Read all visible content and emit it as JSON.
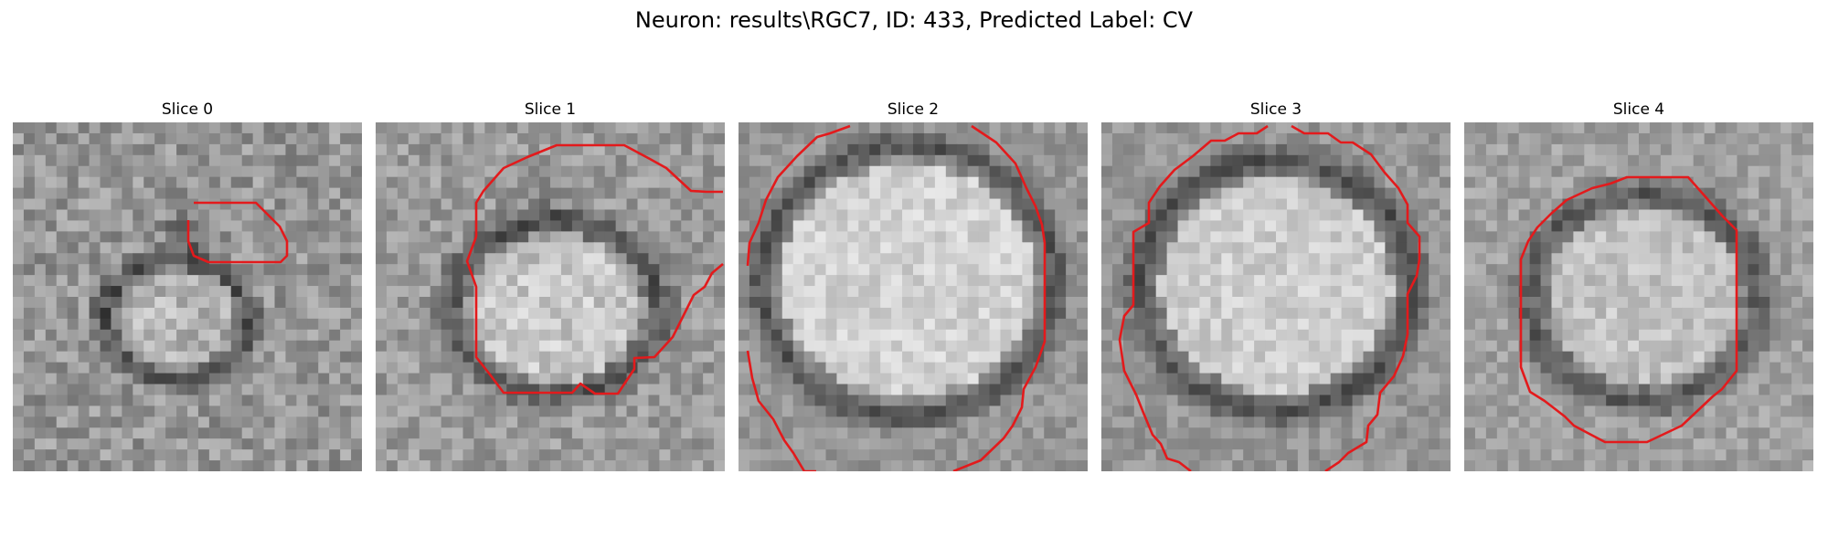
{
  "figure": {
    "title": "Neuron: results\\RGC7, ID: 433, Predicted Label: CV"
  },
  "panels": [
    {
      "title": "Slice 0"
    },
    {
      "title": "Slice 1"
    },
    {
      "title": "Slice 2"
    },
    {
      "title": "Slice 3"
    },
    {
      "title": "Slice 4"
    }
  ],
  "colors": {
    "contour": "#e31a1c",
    "background": "#ffffff",
    "dark_pixel": "#2a2a2a",
    "light_pixel": "#f0f0f0"
  }
}
